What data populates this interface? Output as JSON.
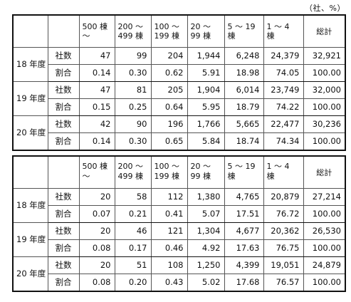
{
  "unit_label": "（社、%）",
  "tables": [
    {
      "headers": [
        {
          "line1": "500 棟",
          "line2": "～"
        },
        {
          "line1": "200 ～",
          "line2": "499 棟"
        },
        {
          "line1": "100 ～",
          "line2": "199 棟"
        },
        {
          "line1": "20 ～",
          "line2": "99 棟"
        },
        {
          "line1": "5 ～ 19",
          "line2": "棟"
        },
        {
          "line1": "1 ～ 4",
          "line2": "棟"
        }
      ],
      "total_header": "総計",
      "rows": [
        {
          "year": "18 年度",
          "count_label": "社数",
          "counts": [
            "47",
            "99",
            "204",
            "1,944",
            "6,248",
            "24,379",
            "32,921"
          ],
          "ratio_label": "割合",
          "ratios": [
            "0.14",
            "0.30",
            "0.62",
            "5.91",
            "18.98",
            "74.05",
            "100.00"
          ]
        },
        {
          "year": "19 年度",
          "count_label": "社数",
          "counts": [
            "47",
            "81",
            "205",
            "1,904",
            "6,014",
            "23,749",
            "32,000"
          ],
          "ratio_label": "割合",
          "ratios": [
            "0.15",
            "0.25",
            "0.64",
            "5.95",
            "18.79",
            "74.22",
            "100.00"
          ]
        },
        {
          "year": "20 年度",
          "count_label": "社数",
          "counts": [
            "42",
            "90",
            "196",
            "1,766",
            "5,665",
            "22,477",
            "30,236"
          ],
          "ratio_label": "割合",
          "ratios": [
            "0.14",
            "0.30",
            "0.65",
            "5.84",
            "18.74",
            "74.34",
            "100.00"
          ]
        }
      ]
    },
    {
      "headers": [
        {
          "line1": "500 棟",
          "line2": "～"
        },
        {
          "line1": "200 ～",
          "line2": "499 棟"
        },
        {
          "line1": "100 ～",
          "line2": "199 棟"
        },
        {
          "line1": "20 ～",
          "line2": "99 棟"
        },
        {
          "line1": "5 ～ 19",
          "line2": "棟"
        },
        {
          "line1": "1 ～ 4",
          "line2": "棟"
        }
      ],
      "total_header": "総計",
      "rows": [
        {
          "year": "18 年度",
          "count_label": "社数",
          "counts": [
            "20",
            "58",
            "112",
            "1,380",
            "4,765",
            "20,879",
            "27,214"
          ],
          "ratio_label": "割合",
          "ratios": [
            "0.07",
            "0.21",
            "0.41",
            "5.07",
            "17.51",
            "76.72",
            "100.00"
          ]
        },
        {
          "year": "19 年度",
          "count_label": "社数",
          "counts": [
            "20",
            "46",
            "121",
            "1,304",
            "4,677",
            "20,362",
            "26,530"
          ],
          "ratio_label": "割合",
          "ratios": [
            "0.08",
            "0.17",
            "0.46",
            "4.92",
            "17.63",
            "76.75",
            "100.00"
          ]
        },
        {
          "year": "20 年度",
          "count_label": "社数",
          "counts": [
            "20",
            "51",
            "108",
            "1,250",
            "4,399",
            "19,051",
            "24,879"
          ],
          "ratio_label": "割合",
          "ratios": [
            "0.08",
            "0.20",
            "0.43",
            "5.02",
            "17.68",
            "76.57",
            "100.00"
          ]
        }
      ]
    }
  ]
}
